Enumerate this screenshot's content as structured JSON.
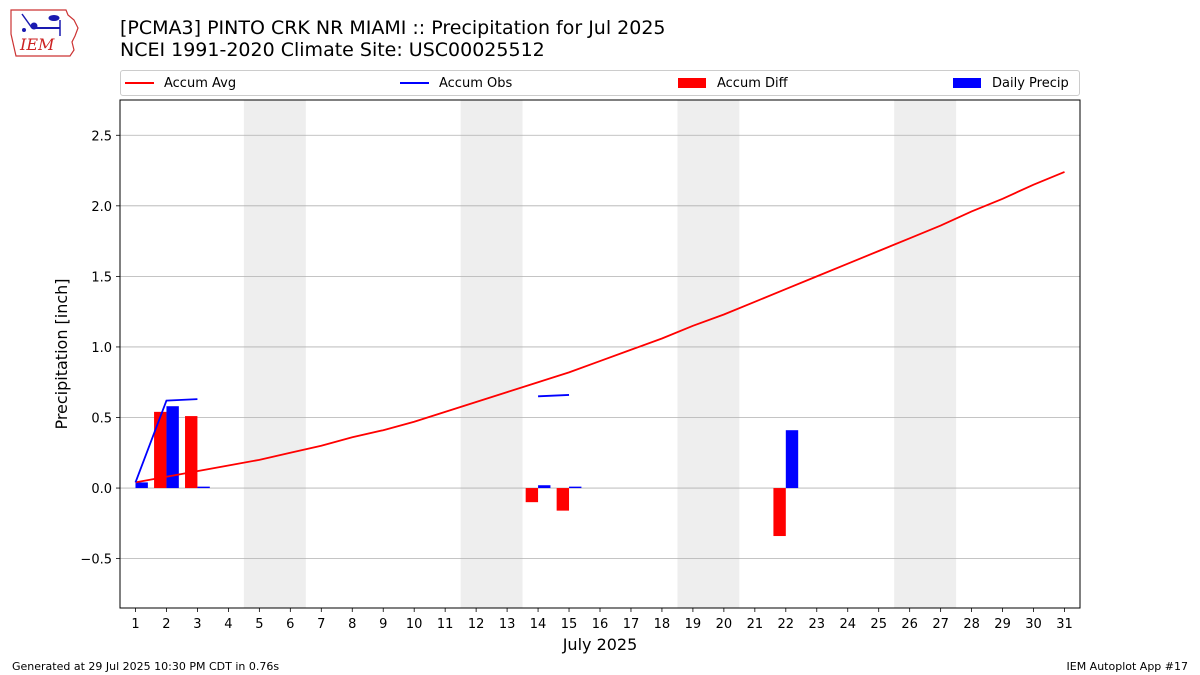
{
  "header": {
    "logo_text": "IEM",
    "title_line1": "[PCMA3] PINTO CRK NR MIAMI :: Precipitation for Jul 2025",
    "title_line2": "NCEI 1991-2020 Climate Site: USC00025512"
  },
  "footer": {
    "generated": "Generated at 29 Jul 2025 10:30 PM CDT in 0.76s",
    "app": "IEM Autoplot App #17"
  },
  "colors": {
    "accum_avg": "#ff0000",
    "accum_obs": "#0000ff",
    "accum_diff": "#ff0000",
    "daily_precip": "#0000ff",
    "weekend_shade": "#eeeeee",
    "grid": "#b0b0b0"
  },
  "chart_data": {
    "type": "bar",
    "xlabel": "July 2025",
    "ylabel": "Precipitation [inch]",
    "xlim": [
      0.5,
      31.5
    ],
    "ylim": [
      -0.85,
      2.75
    ],
    "y_ticks": [
      -0.5,
      0.0,
      0.5,
      1.0,
      1.5,
      2.0,
      2.5
    ],
    "y_tick_labels": [
      "−0.5",
      "0.0",
      "0.5",
      "1.0",
      "1.5",
      "2.0",
      "2.5"
    ],
    "x_ticks": [
      "1",
      "2",
      "3",
      "4",
      "5",
      "6",
      "7",
      "8",
      "9",
      "10",
      "11",
      "12",
      "13",
      "14",
      "15",
      "16",
      "17",
      "18",
      "19",
      "20",
      "21",
      "22",
      "23",
      "24",
      "25",
      "26",
      "27",
      "28",
      "29",
      "30",
      "31"
    ],
    "grid": "horizontal",
    "legend_position": "top",
    "weekend_shading": [
      [
        5,
        6
      ],
      [
        12,
        13
      ],
      [
        19,
        20
      ],
      [
        26,
        27
      ]
    ],
    "series": [
      {
        "name": "Accum Avg",
        "kind": "line",
        "x": [
          1,
          2,
          3,
          4,
          5,
          6,
          7,
          8,
          9,
          10,
          11,
          12,
          13,
          14,
          15,
          16,
          17,
          18,
          19,
          20,
          21,
          22,
          23,
          24,
          25,
          26,
          27,
          28,
          29,
          30,
          31
        ],
        "values": [
          0.04,
          0.08,
          0.12,
          0.16,
          0.2,
          0.25,
          0.3,
          0.36,
          0.41,
          0.47,
          0.54,
          0.61,
          0.68,
          0.75,
          0.82,
          0.9,
          0.98,
          1.06,
          1.15,
          1.23,
          1.32,
          1.41,
          1.5,
          1.59,
          1.68,
          1.77,
          1.86,
          1.96,
          2.05,
          2.15,
          2.24
        ]
      },
      {
        "name": "Accum Obs",
        "kind": "line",
        "segments": [
          {
            "x": [
              1,
              2,
              3
            ],
            "values": [
              0.04,
              0.62,
              0.63
            ]
          },
          {
            "x": [
              14,
              15
            ],
            "values": [
              0.65,
              0.66
            ]
          }
        ]
      },
      {
        "name": "Accum Diff",
        "kind": "bar",
        "x": [
          1,
          2,
          3,
          14,
          15,
          22
        ],
        "values": [
          0.0,
          0.54,
          0.51,
          -0.1,
          -0.16,
          -0.34
        ]
      },
      {
        "name": "Daily Precip",
        "kind": "bar",
        "x": [
          1,
          2,
          3,
          14,
          15,
          22
        ],
        "values": [
          0.04,
          0.58,
          0.01,
          0.02,
          0.01,
          0.41
        ]
      }
    ]
  }
}
